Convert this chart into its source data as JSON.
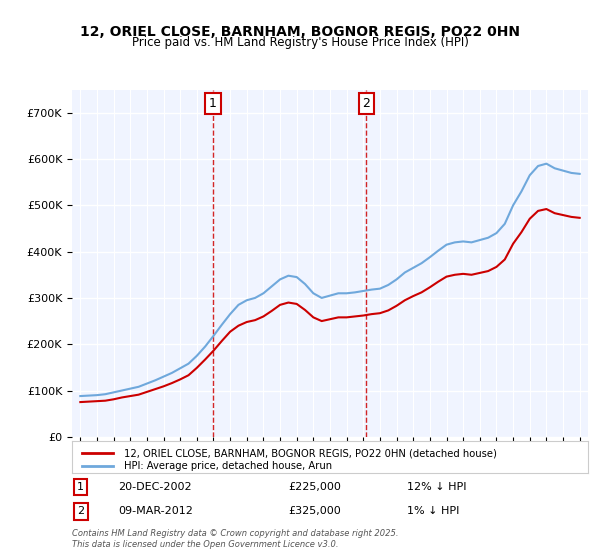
{
  "title": "12, ORIEL CLOSE, BARNHAM, BOGNOR REGIS, PO22 0HN",
  "subtitle": "Price paid vs. HM Land Registry's House Price Index (HPI)",
  "ylabel": "",
  "background_color": "#f0f4ff",
  "plot_bg": "#f0f4ff",
  "sale1_date": "2002-12-20",
  "sale1_price": 225000,
  "sale1_label": "1",
  "sale1_pct": "12% ↓ HPI",
  "sale2_date": "2012-03-09",
  "sale2_price": 325000,
  "sale2_label": "2",
  "sale2_pct": "1% ↓ HPI",
  "hpi_color": "#6fa8dc",
  "price_color": "#cc0000",
  "vline_color": "#cc0000",
  "ylim_max": 750000,
  "footer": "Contains HM Land Registry data © Crown copyright and database right 2025.\nThis data is licensed under the Open Government Licence v3.0."
}
